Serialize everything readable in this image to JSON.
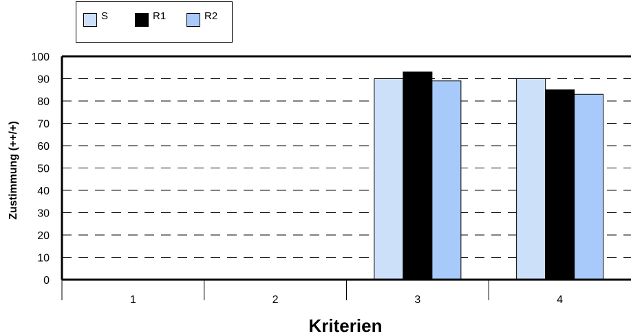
{
  "chart_data": {
    "type": "bar",
    "categories": [
      "1",
      "2",
      "3",
      "4"
    ],
    "series": [
      {
        "name": "S",
        "values": [
          0,
          0,
          90,
          90
        ],
        "color": "#CCE0FA"
      },
      {
        "name": "R1",
        "values": [
          0,
          0,
          93,
          85
        ],
        "color": "#000000"
      },
      {
        "name": "R2",
        "values": [
          0,
          0,
          89,
          83
        ],
        "color": "#A7CAFA"
      }
    ],
    "ylim": [
      0,
      100
    ],
    "yticks": [
      0,
      10,
      20,
      30,
      40,
      50,
      60,
      70,
      80,
      90,
      100
    ],
    "xlabel": "Kriterien",
    "ylabel": "Zustimmung (++/+)",
    "grid": "dashed horizontal",
    "legend_placement": "top-left"
  }
}
